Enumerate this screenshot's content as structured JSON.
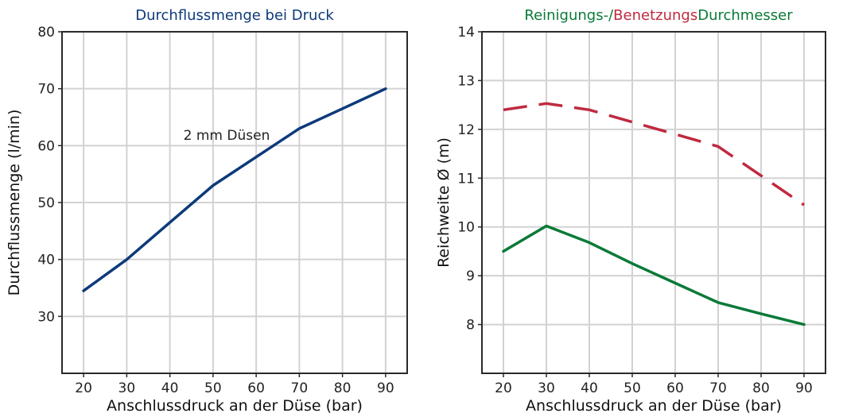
{
  "chart_data": [
    {
      "type": "line",
      "title": "Durchflussmenge bei Druck",
      "title_color": "#0d3a7a",
      "xlabel": "Anschlussdruck an der Düse (bar)",
      "ylabel": "Durchflussmenge (l/min)",
      "xlim": [
        15,
        95
      ],
      "ylim": [
        20,
        80
      ],
      "x_ticks": [
        20,
        30,
        40,
        50,
        60,
        70,
        80,
        90
      ],
      "y_ticks": [
        30,
        40,
        50,
        60,
        70,
        80
      ],
      "grid": true,
      "annotation": "2 mm Düsen",
      "series": [
        {
          "color": "#0d3a7a",
          "dash": "solid",
          "x": [
            20,
            30,
            40,
            50,
            60,
            70,
            80,
            90
          ],
          "y": [
            34.5,
            40,
            46.5,
            53,
            58,
            63,
            66.5,
            70
          ]
        }
      ]
    },
    {
      "type": "line",
      "title_parts": [
        {
          "text": "Reinigungs-/",
          "color": "#0a7a38"
        },
        {
          "text": "Benetzungs",
          "color": "#c0293f"
        },
        {
          "text": "Durchmesser",
          "color": "#0a7a38"
        }
      ],
      "xlabel": "Anschlussdruck an der Düse (bar)",
      "ylabel": "Reichweite Ø (m)",
      "xlim": [
        15,
        95
      ],
      "ylim": [
        7,
        14
      ],
      "x_ticks": [
        20,
        30,
        40,
        50,
        60,
        70,
        80,
        90
      ],
      "y_ticks": [
        8,
        9,
        10,
        11,
        12,
        13,
        14
      ],
      "grid": true,
      "series": [
        {
          "color": "#c0293f",
          "dash": "dashed",
          "x": [
            20,
            30,
            40,
            50,
            60,
            70,
            80,
            90
          ],
          "y": [
            12.4,
            12.53,
            12.4,
            12.15,
            11.9,
            11.65,
            11.05,
            10.45
          ]
        },
        {
          "color": "#0a7a38",
          "dash": "solid",
          "x": [
            20,
            30,
            40,
            50,
            60,
            70,
            80,
            90
          ],
          "y": [
            9.5,
            10.02,
            9.68,
            9.25,
            8.85,
            8.45,
            8.22,
            8.0
          ]
        }
      ]
    }
  ]
}
